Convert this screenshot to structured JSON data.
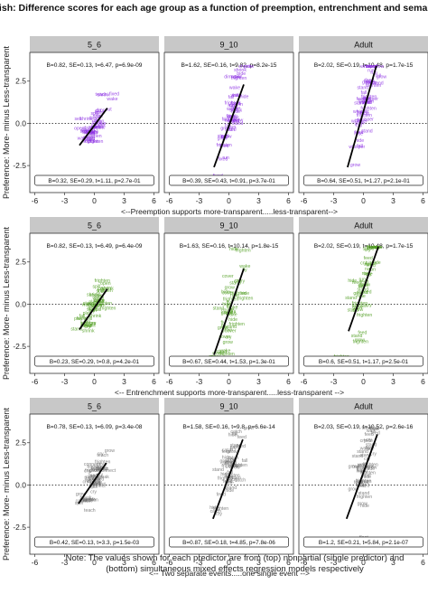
{
  "figure": {
    "title": "English: Difference scores for each age group as a function of preemption, entrenchment and semantics",
    "ylabel": "Preference: More- minus Less-transparent",
    "note": "Note: The values shown for each predictor are from (top) nonpartial (single predictor) and (bottom) simultaneous mixed effects regression models respectively"
  },
  "colors": {
    "row1": "#8a2be2",
    "row2": "#4a9a1a",
    "row3": "#6e6e6e",
    "fit": "#000000",
    "strip": "#c8c8c8",
    "panel_border": "#333333"
  },
  "chart_data": [
    {
      "type": "scatter",
      "row_label": "<--Preemption supports more-transparent.....less-transparent-->",
      "xticks": [
        -6,
        -3,
        0,
        3,
        6
      ],
      "yticks": [
        -2.5,
        0.0,
        2.5
      ],
      "xlim": [
        -6.5,
        6.5
      ],
      "ylim": [
        -4.1,
        4.2
      ],
      "panels": [
        {
          "facet": "5_6",
          "top_stat": "B=0.82, SE=0.13, t=6.47, p=6.9e-09",
          "bottom_stat": "B=0.32, SE=0.29, t=1.11, p=2.7e-01",
          "fit": {
            "x": [
              -1.5,
              1.3
            ],
            "y": [
              -1.3,
              0.9
            ]
          },
          "labels": [
            "fixed",
            "shrink",
            "drop",
            "go",
            "wake",
            "frighten",
            "spill",
            "sell",
            "teach",
            "cut",
            "open"
          ],
          "point_spread": {
            "x_center": 0.0,
            "x_sd": 0.8,
            "y_sd": 0.55
          }
        },
        {
          "facet": "9_10",
          "top_stat": "B=1.62, SE=0.16, t=9.82, p=8.2e-15",
          "bottom_stat": "B=0.39, SE=0.43, t=0.91, p=3.7e-01",
          "fit": {
            "x": [
              -1.5,
              1.5
            ],
            "y": [
              -2.6,
              2.3
            ]
          },
          "labels": [
            "fixed",
            "stand",
            "wake",
            "grow",
            "hide",
            "fall",
            "dim",
            "shrink",
            "frighten",
            "run"
          ],
          "point_spread": {
            "x_center": 0.3,
            "x_sd": 0.75,
            "y_sd": 0.9
          }
        },
        {
          "facet": "Adult",
          "top_stat": "B=2.02, SE=0.19, t=10.48, p=1.7e-15",
          "bottom_stat": "B=0.64, SE=0.51, t=1.27, p=2.1e-01",
          "fit": {
            "x": [
              -1.6,
              1.3
            ],
            "y": [
              -2.6,
              3.4
            ]
          },
          "labels": [
            "feed",
            "whisper",
            "run",
            "hide",
            "stand",
            "fall",
            "grow",
            "frighten"
          ],
          "point_spread": {
            "x_center": 0.2,
            "x_sd": 0.7,
            "y_sd": 1.2
          }
        }
      ]
    },
    {
      "type": "scatter",
      "row_label": "<-- Entrenchment supports more-transparent.....less-transparent -->",
      "xticks": [
        -6,
        -3,
        0,
        3,
        6
      ],
      "yticks": [
        -2.5,
        0.0,
        2.5
      ],
      "xlim": [
        -6.5,
        6.5
      ],
      "ylim": [
        -4.1,
        4.2
      ],
      "panels": [
        {
          "facet": "5_6",
          "top_stat": "B=0.82, SE=0.13, t=6.49, p=6.4e-09",
          "bottom_stat": "B=0.23, SE=0.29, t=0.8, p=4.2e-01",
          "fit": {
            "x": [
              -1.5,
              1.3
            ],
            "y": [
              -1.5,
              0.9
            ]
          },
          "labels": [
            "shrink",
            "stand",
            "frighten",
            "spill",
            "cry",
            "play",
            "wake",
            "fall",
            "open"
          ],
          "point_spread": {
            "x_center": 0.0,
            "x_sd": 0.8,
            "y_sd": 0.55
          }
        },
        {
          "facet": "9_10",
          "top_stat": "B=1.63, SE=0.16, t=10.14, p=1.8e-15",
          "bottom_stat": "B=0.67, SE=0.44, t=1.53, p=1.3e-01",
          "fit": {
            "x": [
              -1.5,
              1.5
            ],
            "y": [
              -3.0,
              2.1
            ]
          },
          "labels": [
            "cover",
            "fly",
            "grow",
            "frighten",
            "hide",
            "cry",
            "wake",
            "stand"
          ],
          "point_spread": {
            "x_center": 0.3,
            "x_sd": 0.75,
            "y_sd": 0.9
          }
        },
        {
          "facet": "Adult",
          "top_stat": "B=2.02, SE=0.19, t=10.48, p=1.7e-15",
          "bottom_stat": "B=0.6, SE=0.51, t=1.17, p=2.5e-01",
          "fit": {
            "x": [
              -1.5,
              1.5
            ],
            "y": [
              -1.6,
              3.4
            ]
          },
          "labels": [
            "feed",
            "grow",
            "hide",
            "run",
            "stand",
            "frighten",
            "cry"
          ],
          "point_spread": {
            "x_center": 0.2,
            "x_sd": 0.7,
            "y_sd": 1.2
          }
        }
      ]
    },
    {
      "type": "scatter",
      "row_label": "<-- Two separate events.....one single event -->",
      "xticks": [
        -6,
        -3,
        0,
        3,
        6
      ],
      "yticks": [
        -2.5,
        0.0,
        2.5
      ],
      "xlim": [
        -6.5,
        6.5
      ],
      "ylim": [
        -4.1,
        4.2
      ],
      "panels": [
        {
          "facet": "5_6",
          "top_stat": "B=0.78, SE=0.13, t=6.09, p=3.4e-08",
          "bottom_stat": "B=0.42, SE=0.13, t=3.3, p=1.5e-03",
          "fit": {
            "x": [
              -1.6,
              1.2
            ],
            "y": [
              -1.1,
              1.3
            ]
          },
          "labels": [
            "feed",
            "spill",
            "frighten",
            "grow",
            "connect",
            "cry",
            "teach",
            "break"
          ],
          "point_spread": {
            "x_center": 0.0,
            "x_sd": 0.8,
            "y_sd": 0.55
          }
        },
        {
          "facet": "9_10",
          "top_stat": "B=1.58, SE=0.16, t=9.8, p=6.6e-14",
          "bottom_stat": "B=0.87, SE=0.18, t=4.85, p=7.8e-06",
          "fit": {
            "x": [
              -1.6,
              1.4
            ],
            "y": [
              -2.0,
              2.7
            ]
          },
          "labels": [
            "catch",
            "frighten",
            "feed",
            "grow",
            "hide",
            "fall",
            "cry",
            "stand"
          ],
          "point_spread": {
            "x_center": 0.3,
            "x_sd": 0.75,
            "y_sd": 0.9
          }
        },
        {
          "facet": "Adult",
          "top_stat": "B=2.03, SE=0.19, t=10.52, p=2.6e-16",
          "bottom_stat": "B=1.2, SE=0.21, t=5.84, p=2.1e-07",
          "fit": {
            "x": [
              -1.7,
              1.4
            ],
            "y": [
              -2.0,
              3.0
            ]
          },
          "labels": [
            "feed",
            "frighten",
            "walk",
            "grow",
            "float",
            "cry",
            "stand",
            "hide"
          ],
          "point_spread": {
            "x_center": 0.2,
            "x_sd": 0.7,
            "y_sd": 1.2
          }
        }
      ]
    }
  ]
}
